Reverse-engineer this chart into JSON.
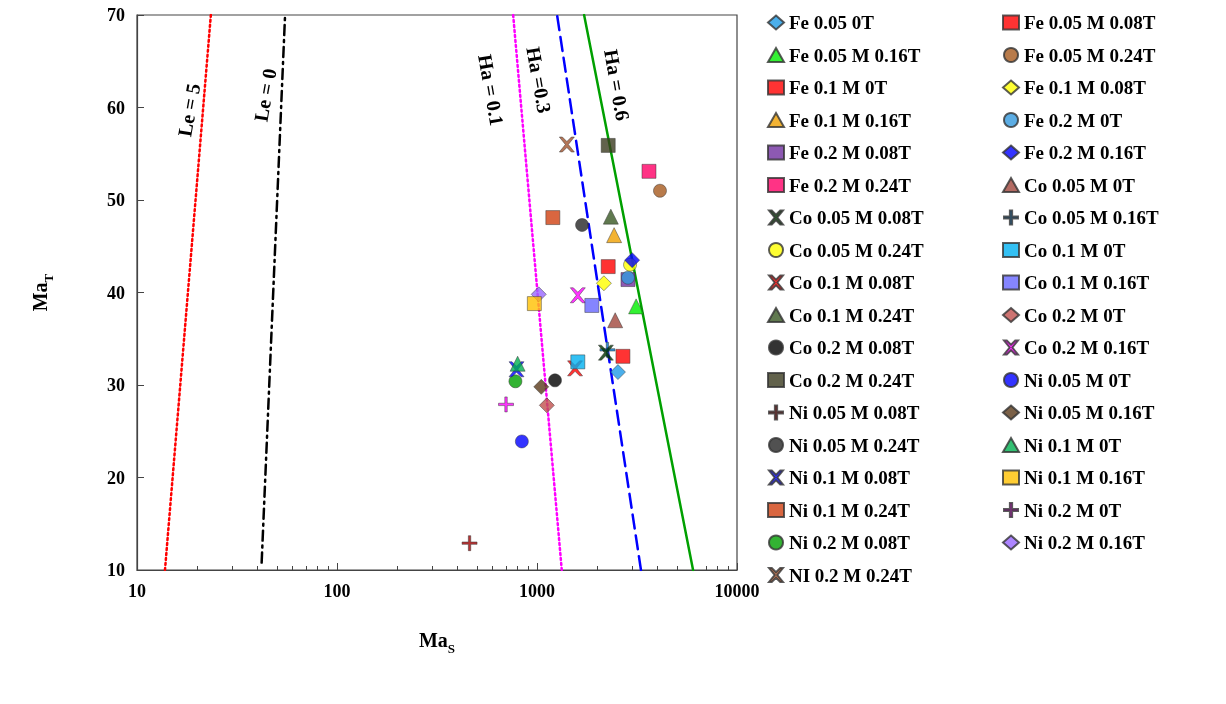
{
  "chart_data": {
    "type": "scatter",
    "xlabel": "Ma$_{S}$",
    "ylabel": "Ma$_{T}$",
    "log": "x",
    "xlim": [
      10,
      10000
    ],
    "xticks": [
      10,
      100,
      1000,
      10000
    ],
    "ylim": [
      10,
      70
    ],
    "yticks": [
      10,
      20,
      30,
      40,
      50,
      60,
      70
    ],
    "grid": false,
    "legend": "right",
    "series": [
      {
        "name": "Fe 0.05 0T",
        "color": "#1e9be6",
        "marker": "diamond",
        "x": [
          2540
        ],
        "values": [
          31.4
        ]
      },
      {
        "name": "Fe 0.05 M 0.08T",
        "color": "#ff0000",
        "marker": "square",
        "x": [
          2690
        ],
        "values": [
          33.1
        ]
      },
      {
        "name": "Fe 0.05 M 0.16T",
        "color": "#00ee00",
        "marker": "triangle",
        "x": [
          3130
        ],
        "values": [
          38.5
        ]
      },
      {
        "name": "Fe 0.05 M 0.24T",
        "color": "#a65a1e",
        "marker": "circle",
        "x": [
          4120
        ],
        "values": [
          51.0
        ]
      },
      {
        "name": "Fe 0.1 M 0T",
        "color": "#ff0000",
        "marker": "square",
        "x": [
          2270
        ],
        "values": [
          42.8
        ]
      },
      {
        "name": "Fe 0.1 M 0.08T",
        "color": "#ffff00",
        "marker": "diamond",
        "x": [
          2160
        ],
        "values": [
          41.0
        ]
      },
      {
        "name": "Fe 0.1 M 0.16T",
        "color": "#f0a000",
        "marker": "triangle",
        "x": [
          2430
        ],
        "values": [
          46.2
        ]
      },
      {
        "name": "Fe 0.2 M 0T",
        "color": "#3399dd",
        "marker": "circle",
        "x": [
          2850
        ],
        "values": [
          41.6
        ]
      },
      {
        "name": "Fe 0.2 M 0.08T",
        "color": "#7030a0",
        "marker": "square",
        "x": [
          2850
        ],
        "values": [
          41.4
        ]
      },
      {
        "name": "Fe 0.2 M 0.16T",
        "color": "#0000ff",
        "marker": "diamond",
        "x": [
          2990
        ],
        "values": [
          43.5
        ]
      },
      {
        "name": "Fe 0.2 M 0.24T",
        "color": "#ff0066",
        "marker": "square",
        "x": [
          3630
        ],
        "values": [
          53.1
        ]
      },
      {
        "name": "Co 0.05 M 0T",
        "color": "#a0463c",
        "marker": "triangle",
        "x": [
          2460
        ],
        "values": [
          37.0
        ]
      },
      {
        "name": "Co 0.05 M 0.08T",
        "color": "#003300",
        "marker": "cross",
        "x": [
          2210
        ],
        "values": [
          33.5
        ]
      },
      {
        "name": "Co 0.05 M 0.16T",
        "color": "#0070c0",
        "marker": "plus",
        "x": [
          2250
        ],
        "values": [
          33.8
        ]
      },
      {
        "name": "Co 0.05 M 0.24T",
        "color": "#ffff00",
        "marker": "circle",
        "x": [
          2920
        ],
        "values": [
          43.0
        ]
      },
      {
        "name": "Co 0.1 M 0T",
        "color": "#00b0f0",
        "marker": "square",
        "x": [
          1600
        ],
        "values": [
          32.5
        ]
      },
      {
        "name": "Co 0.1 M 0.08T",
        "color": "#ff0000",
        "marker": "cross",
        "x": [
          1550
        ],
        "values": [
          31.8
        ]
      },
      {
        "name": "Co 0.1 M 0.16T",
        "color": "#6666ff",
        "marker": "square",
        "x": [
          1880
        ],
        "values": [
          38.6
        ]
      },
      {
        "name": "Co 0.1 M 0.24T",
        "color": "#385723",
        "marker": "triangle",
        "x": [
          2340
        ],
        "values": [
          48.2
        ]
      },
      {
        "name": "Co 0.2 M 0T",
        "color": "#c0504d",
        "marker": "diamond",
        "x": [
          1120
        ],
        "values": [
          27.8
        ]
      },
      {
        "name": "Co 0.2 M 0.08T",
        "color": "#000000",
        "marker": "circle",
        "x": [
          1230
        ],
        "values": [
          30.5
        ]
      },
      {
        "name": "Co 0.2 M 0.16T",
        "color": "#ff00ff",
        "marker": "cross",
        "x": [
          1600
        ],
        "values": [
          39.7
        ]
      },
      {
        "name": "Co 0.2 M 0.24T",
        "color": "#3b3b1f",
        "marker": "square",
        "x": [
          2270
        ],
        "values": [
          55.9
        ]
      },
      {
        "name": "Ni 0.05 M 0T",
        "color": "#0000ff",
        "marker": "circle",
        "x": [
          840
        ],
        "values": [
          23.9
        ]
      },
      {
        "name": "Ni 0.05 M 0.08T",
        "color": "#a00000",
        "marker": "plus",
        "x": [
          460
        ],
        "values": [
          12.9
        ]
      },
      {
        "name": "Ni 0.05 M 0.16T",
        "color": "#5a3a1a",
        "marker": "diamond",
        "x": [
          1050
        ],
        "values": [
          29.8
        ]
      },
      {
        "name": "Ni 0.05 M 0.24T",
        "color": "#262626",
        "marker": "circle",
        "x": [
          1680
        ],
        "values": [
          47.3
        ]
      },
      {
        "name": "Ni 0.1 M 0T",
        "color": "#00b050",
        "marker": "triangle",
        "x": [
          800
        ],
        "values": [
          32.3
        ]
      },
      {
        "name": "Ni 0.1 M 0.08T",
        "color": "#0000ff",
        "marker": "cross",
        "x": [
          790
        ],
        "values": [
          31.7
        ]
      },
      {
        "name": "Ni 0.1 M 0.16T",
        "color": "#ffc000",
        "marker": "square",
        "x": [
          970
        ],
        "values": [
          38.8
        ]
      },
      {
        "name": "Ni 0.1 M 0.24T",
        "color": "#d04010",
        "marker": "square",
        "x": [
          1200
        ],
        "values": [
          48.1
        ]
      },
      {
        "name": "Ni 0.2 M 0T",
        "color": "#ff00ff",
        "marker": "plus",
        "x": [
          700
        ],
        "values": [
          27.9
        ]
      },
      {
        "name": "Ni 0.2 M 0.08T",
        "color": "#00a000",
        "marker": "circle",
        "x": [
          780
        ],
        "values": [
          30.4
        ]
      },
      {
        "name": "Ni 0.2 M 0.16T",
        "color": "#9966ff",
        "marker": "diamond",
        "x": [
          1020
        ],
        "values": [
          39.8
        ]
      },
      {
        "name": "NI 0.2 M 0.24T",
        "color": "#a0522d",
        "marker": "cross",
        "x": [
          1410
        ],
        "values": [
          56.0
        ]
      },
      {
        "name": "Le = 5",
        "type": "line",
        "color": "#ff0000",
        "line_style": "dotted",
        "marker": "none",
        "x": [
          13.8,
          23.4
        ],
        "values": [
          10,
          70
        ]
      },
      {
        "name": "Le = 0",
        "type": "line",
        "color": "#000000",
        "line_style": "dashdot",
        "marker": "none",
        "x": [
          42,
          55
        ],
        "values": [
          10.8,
          70
        ]
      },
      {
        "name": "Ha = 0.1",
        "type": "line",
        "color": "#ff00ff",
        "line_style": "dotted",
        "marker": "none",
        "x": [
          1330,
          760
        ],
        "values": [
          10,
          70
        ]
      },
      {
        "name": "Ha =0.3",
        "type": "line",
        "color": "#0000ff",
        "line_style": "dashed",
        "marker": "none",
        "x": [
          3310,
          1260
        ],
        "values": [
          10,
          70
        ]
      },
      {
        "name": "Ha = 0.6",
        "type": "line",
        "color": "#00a000",
        "line_style": "solid",
        "marker": "none",
        "x": [
          6030,
          1720
        ],
        "values": [
          10,
          70
        ]
      }
    ]
  }
}
